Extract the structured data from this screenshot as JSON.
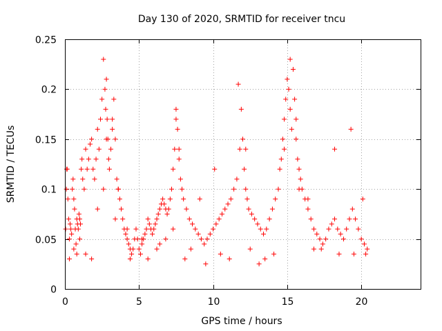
{
  "chart_data": {
    "type": "scatter",
    "title": "Day 130 of 2020, SRMTID for receiver tncu",
    "xlabel": "GPS time / hours",
    "ylabel": "SRMTID / TECUs",
    "xlim": [
      0,
      24
    ],
    "ylim": [
      0,
      0.25
    ],
    "x_ticks": [
      0,
      5,
      10,
      15,
      20
    ],
    "x_tick_labels": [
      "0",
      "5",
      "10",
      "15",
      "20"
    ],
    "y_ticks": [
      0,
      0.05,
      0.1,
      0.15,
      0.2,
      0.25
    ],
    "y_tick_labels": [
      "0",
      "0.05",
      "0.1",
      "0.15",
      "0.2",
      "0.25"
    ],
    "grid": true,
    "marker": "plus",
    "color": "#ff0000",
    "series": [
      {
        "name": "SRMTID",
        "x": [
          0.05,
          0.1,
          0.15,
          0.2,
          0.25,
          0.3,
          0.35,
          0.4,
          0.45,
          0.5,
          0.55,
          0.6,
          0.65,
          0.7,
          0.75,
          0.8,
          0.85,
          0.9,
          0.95,
          1.0,
          1.05,
          1.1,
          1.15,
          1.2,
          1.3,
          1.4,
          1.5,
          1.6,
          1.7,
          1.8,
          1.9,
          2.0,
          2.1,
          2.2,
          2.3,
          2.4,
          2.5,
          2.6,
          2.7,
          2.75,
          2.8,
          2.85,
          2.9,
          2.95,
          3.0,
          3.1,
          3.2,
          3.3,
          3.4,
          3.5,
          3.6,
          3.7,
          3.8,
          3.9,
          4.0,
          4.1,
          4.2,
          4.3,
          4.4,
          4.5,
          4.6,
          4.7,
          4.8,
          4.9,
          5.0,
          5.1,
          5.2,
          5.3,
          5.4,
          5.5,
          5.6,
          5.7,
          5.8,
          5.9,
          6.0,
          6.1,
          6.2,
          6.3,
          6.4,
          6.5,
          6.6,
          6.7,
          6.8,
          6.9,
          7.0,
          7.1,
          7.2,
          7.3,
          7.4,
          7.5,
          7.6,
          7.7,
          7.8,
          7.9,
          8.0,
          8.2,
          8.4,
          8.6,
          8.8,
          9.0,
          9.2,
          9.4,
          9.6,
          9.8,
          10.0,
          10.2,
          10.4,
          10.6,
          10.8,
          11.0,
          11.2,
          11.4,
          11.6,
          11.8,
          11.9,
          12.0,
          12.1,
          12.2,
          12.3,
          12.4,
          12.6,
          12.8,
          13.0,
          13.2,
          13.4,
          13.6,
          13.8,
          14.0,
          14.2,
          14.4,
          14.5,
          14.6,
          14.7,
          14.8,
          14.9,
          15.0,
          15.1,
          15.2,
          15.3,
          15.4,
          15.5,
          15.6,
          15.7,
          15.8,
          15.9,
          16.0,
          16.2,
          16.4,
          16.6,
          16.8,
          17.0,
          17.2,
          17.4,
          17.6,
          17.8,
          18.0,
          18.2,
          18.4,
          18.6,
          18.8,
          19.0,
          19.2,
          19.4,
          19.6,
          19.8,
          20.0,
          20.2,
          20.4,
          0.12,
          0.6,
          1.0,
          1.4,
          2.2,
          2.8,
          3.2,
          3.6,
          4.2,
          5.6,
          6.4,
          7.5,
          7.7,
          8.5,
          9.5,
          10.5,
          11.7,
          12.2,
          13.5,
          14.8,
          15.2,
          15.6,
          16.8,
          18.2,
          19.3,
          20.3,
          0.3,
          0.8,
          1.8,
          2.6,
          3.4,
          4.4,
          5.2,
          6.2,
          6.8,
          7.3,
          8.1,
          9.1,
          10.1,
          11.1,
          12.5,
          13.1,
          14.1,
          15.8,
          16.4,
          17.3,
          18.5,
          19.5,
          20.1
        ],
        "y": [
          0.06,
          0.1,
          0.12,
          0.09,
          0.07,
          0.05,
          0.065,
          0.06,
          0.055,
          0.1,
          0.11,
          0.09,
          0.08,
          0.06,
          0.045,
          0.07,
          0.065,
          0.06,
          0.075,
          0.07,
          0.065,
          0.12,
          0.13,
          0.11,
          0.1,
          0.14,
          0.12,
          0.13,
          0.145,
          0.15,
          0.12,
          0.11,
          0.13,
          0.16,
          0.14,
          0.17,
          0.19,
          0.23,
          0.2,
          0.18,
          0.21,
          0.17,
          0.15,
          0.13,
          0.12,
          0.14,
          0.17,
          0.19,
          0.15,
          0.11,
          0.1,
          0.09,
          0.08,
          0.07,
          0.06,
          0.055,
          0.05,
          0.045,
          0.04,
          0.035,
          0.04,
          0.05,
          0.06,
          0.05,
          0.04,
          0.035,
          0.045,
          0.05,
          0.055,
          0.06,
          0.07,
          0.065,
          0.06,
          0.055,
          0.06,
          0.065,
          0.07,
          0.075,
          0.08,
          0.085,
          0.09,
          0.085,
          0.08,
          0.075,
          0.08,
          0.09,
          0.1,
          0.12,
          0.14,
          0.17,
          0.16,
          0.13,
          0.11,
          0.1,
          0.09,
          0.08,
          0.07,
          0.065,
          0.06,
          0.055,
          0.05,
          0.045,
          0.05,
          0.055,
          0.06,
          0.065,
          0.07,
          0.075,
          0.08,
          0.085,
          0.09,
          0.1,
          0.11,
          0.14,
          0.18,
          0.15,
          0.12,
          0.1,
          0.09,
          0.08,
          0.075,
          0.07,
          0.065,
          0.06,
          0.055,
          0.06,
          0.07,
          0.08,
          0.09,
          0.1,
          0.12,
          0.13,
          0.15,
          0.17,
          0.19,
          0.21,
          0.2,
          0.18,
          0.16,
          0.22,
          0.19,
          0.15,
          0.13,
          0.12,
          0.11,
          0.1,
          0.09,
          0.08,
          0.07,
          0.06,
          0.055,
          0.05,
          0.045,
          0.05,
          0.06,
          0.065,
          0.07,
          0.06,
          0.055,
          0.05,
          0.06,
          0.07,
          0.08,
          0.07,
          0.06,
          0.05,
          0.045,
          0.04,
          0.12,
          0.04,
          0.05,
          0.035,
          0.08,
          0.15,
          0.16,
          0.1,
          0.06,
          0.03,
          0.045,
          0.18,
          0.14,
          0.04,
          0.025,
          0.035,
          0.205,
          0.14,
          0.03,
          0.14,
          0.23,
          0.17,
          0.04,
          0.14,
          0.16,
          0.035,
          0.03,
          0.035,
          0.03,
          0.1,
          0.07,
          0.03,
          0.05,
          0.04,
          0.05,
          0.06,
          0.03,
          0.09,
          0.12,
          0.03,
          0.04,
          0.025,
          0.035,
          0.1,
          0.09,
          0.04,
          0.035,
          0.035,
          0.09
        ]
      }
    ]
  }
}
